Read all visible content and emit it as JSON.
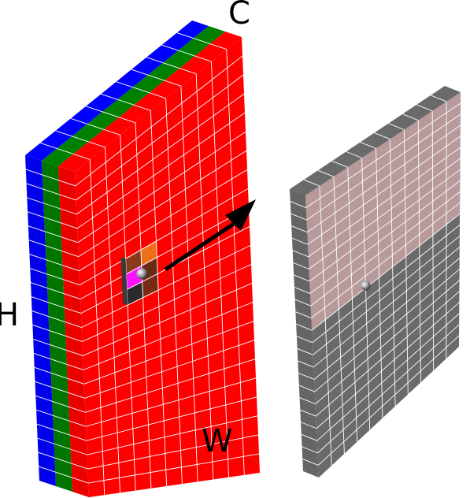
{
  "labels": {
    "channels": "C",
    "height": "H",
    "width": "W"
  },
  "input_tensor": {
    "layers": [
      {
        "name": "blue-channel",
        "color": "#0000ff"
      },
      {
        "name": "green-channel",
        "color": "#008000"
      },
      {
        "name": "red-channel",
        "color": "#ff0000"
      }
    ],
    "grid_rows": 23,
    "grid_cols": 11,
    "kernel_cells": [
      {
        "color": "#8a3a1a"
      },
      {
        "color": "#f07018"
      },
      {
        "color": "#ff10ff"
      },
      {
        "color": "#6a2a14"
      },
      {
        "color": "#2a2a2a"
      },
      {
        "color": "#7a2a14"
      }
    ]
  },
  "output_tensor": {
    "grid_rows": 23,
    "grid_cols": 11,
    "base_color": "#6a6a6a",
    "highlight_color": "#b89a9a",
    "highlight_rows": 11
  },
  "colors": {
    "grid_line": "#ffffff",
    "arrow": "#000000"
  }
}
